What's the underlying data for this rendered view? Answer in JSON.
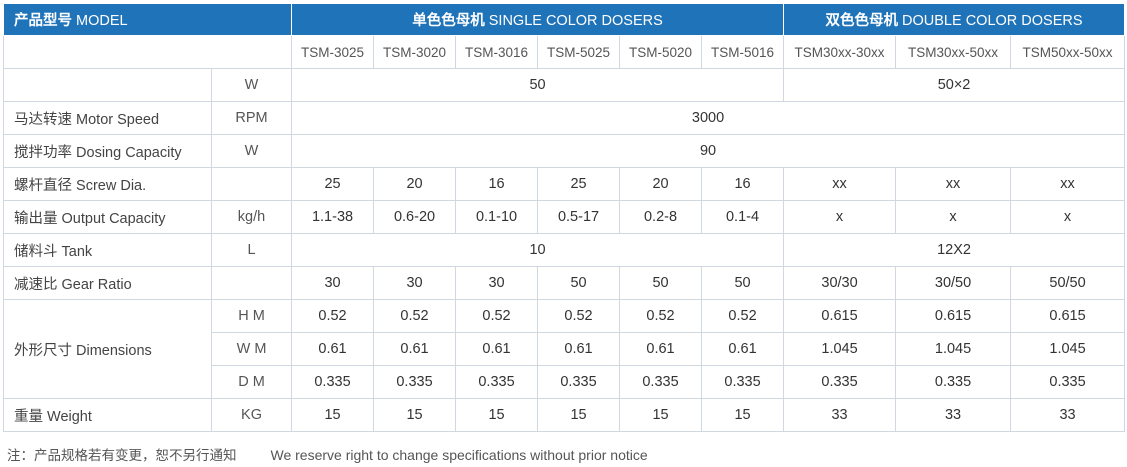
{
  "header": {
    "model": {
      "cn": "产品型号",
      "en": "MODEL"
    },
    "single": {
      "cn": "单色色母机",
      "en": "SINGLE COLOR DOSERS"
    },
    "double": {
      "cn": "双色色母机",
      "en": "DOUBLE COLOR DOSERS"
    }
  },
  "models": [
    "TSM-3025",
    "TSM-3020",
    "TSM-3016",
    "TSM-5025",
    "TSM-5020",
    "TSM-5016",
    "TSM30xx-30xx",
    "TSM30xx-50xx",
    "TSM50xx-50xx"
  ],
  "rows": {
    "power": {
      "label": "",
      "unit": "W",
      "single": "50",
      "double": "50×2"
    },
    "motor": {
      "label": "马达转速 Motor Speed",
      "unit": "RPM",
      "value": "3000"
    },
    "dosing": {
      "label": "搅拌功率 Dosing Capacity",
      "unit": "W",
      "value": "90"
    },
    "screw": {
      "label": "螺杆直径 Screw Dia.",
      "unit": "",
      "values": [
        "25",
        "20",
        "16",
        "25",
        "20",
        "16",
        "xx",
        "xx",
        "xx"
      ]
    },
    "output": {
      "label": "输出量 Output Capacity",
      "unit": "kg/h",
      "values": [
        "1.1-38",
        "0.6-20",
        "0.1-10",
        "0.5-17",
        "0.2-8",
        "0.1-4",
        "x",
        "x",
        "x"
      ]
    },
    "tank": {
      "label": "储料斗 Tank",
      "unit": "L",
      "single": "10",
      "double": "12X2"
    },
    "gear": {
      "label": "减速比 Gear Ratio",
      "unit": "",
      "values": [
        "30",
        "30",
        "30",
        "50",
        "50",
        "50",
        "30/30",
        "30/50",
        "50/50"
      ]
    },
    "dimensions": {
      "label": "外形尺寸 Dimensions",
      "h": {
        "unit": "H M",
        "values": [
          "0.52",
          "0.52",
          "0.52",
          "0.52",
          "0.52",
          "0.52",
          "0.615",
          "0.615",
          "0.615"
        ]
      },
      "w": {
        "unit": "W M",
        "values": [
          "0.61",
          "0.61",
          "0.61",
          "0.61",
          "0.61",
          "0.61",
          "1.045",
          "1.045",
          "1.045"
        ]
      },
      "d": {
        "unit": "D M",
        "values": [
          "0.335",
          "0.335",
          "0.335",
          "0.335",
          "0.335",
          "0.335",
          "0.335",
          "0.335",
          "0.335"
        ]
      }
    },
    "weight": {
      "label": "重量 Weight",
      "unit": "KG",
      "values": [
        "15",
        "15",
        "15",
        "15",
        "15",
        "15",
        "33",
        "33",
        "33"
      ]
    }
  },
  "note": {
    "cn": "注：产品规格若有变更，恕不另行通知",
    "en": "We reserve right to change specifications without prior notice"
  },
  "colors": {
    "header_bg": "#1f73b9",
    "border": "#cfd8e0"
  }
}
